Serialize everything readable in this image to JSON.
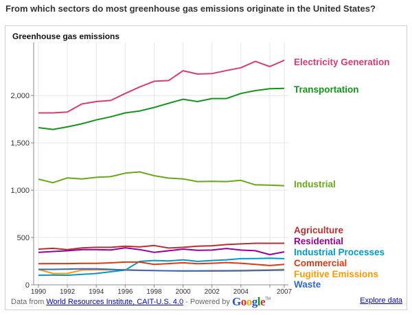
{
  "page": {
    "question": "From which sectors do most greenhouse gas emissions originate in the United States?"
  },
  "footer": {
    "prefix": "Data from ",
    "source_link": "World Resources Institute, CAIT-U.S. 4.0",
    "powered_by": " - Powered by ",
    "google": [
      "G",
      "o",
      "o",
      "g",
      "l",
      "e"
    ],
    "google_colors": [
      "#1a56d6",
      "#d62d20",
      "#f2a900",
      "#1a56d6",
      "#109618",
      "#d62d20"
    ],
    "tm": "TM",
    "explore_link": "Explore data"
  },
  "chart_data": {
    "type": "line",
    "title": "Greenhouse gas emissions",
    "xlabel": "",
    "ylabel": "",
    "x": [
      1990,
      1991,
      1992,
      1993,
      1994,
      1995,
      1996,
      1997,
      1998,
      1999,
      2000,
      2001,
      2002,
      2003,
      2004,
      2005,
      2006,
      2007
    ],
    "x_ticks": [
      1990,
      1992,
      1994,
      1996,
      1998,
      2000,
      2002,
      2004,
      2007
    ],
    "x_gridlines": [
      1990,
      1992,
      1994,
      1996,
      1998,
      2000,
      2002,
      2004,
      2006,
      2007
    ],
    "y_ticks": [
      0,
      500,
      1000,
      1500,
      2000
    ],
    "y_tick_labels": [
      "0",
      "500",
      "1,000",
      "1,500",
      "2,000"
    ],
    "ylim": [
      0,
      2560
    ],
    "xlim": [
      1990,
      2007
    ],
    "grid": true,
    "legend": "right, labels at line ends",
    "series": [
      {
        "name": "Electricity Generation",
        "color": "#dc3972",
        "values": [
          1817,
          1817,
          1825,
          1911,
          1936,
          1948,
          2022,
          2091,
          2151,
          2158,
          2262,
          2227,
          2232,
          2264,
          2294,
          2361,
          2306,
          2373
        ]
      },
      {
        "name": "Transportation",
        "color": "#109618",
        "values": [
          1661,
          1642,
          1669,
          1701,
          1743,
          1775,
          1817,
          1837,
          1874,
          1918,
          1961,
          1936,
          1968,
          1968,
          2022,
          2052,
          2072,
          2076
        ]
      },
      {
        "name": "Industrial",
        "color": "#66aa11",
        "values": [
          1116,
          1079,
          1130,
          1119,
          1136,
          1143,
          1180,
          1193,
          1153,
          1128,
          1119,
          1091,
          1093,
          1091,
          1104,
          1056,
          1054,
          1047
        ]
      },
      {
        "name": "Agriculture",
        "color": "#b82e2e",
        "values": [
          377,
          385,
          372,
          390,
          396,
          396,
          408,
          400,
          415,
          389,
          396,
          408,
          413,
          425,
          432,
          439,
          439,
          439
        ]
      },
      {
        "name": "Residential",
        "color": "#990099",
        "values": [
          343,
          352,
          360,
          372,
          372,
          368,
          391,
          372,
          343,
          360,
          377,
          365,
          367,
          384,
          367,
          360,
          319,
          348
        ]
      },
      {
        "name": "Industrial Processes",
        "color": "#0099c6",
        "values": [
          101,
          104,
          101,
          110,
          120,
          138,
          156,
          247,
          257,
          252,
          264,
          247,
          257,
          264,
          276,
          277,
          281,
          276
        ]
      },
      {
        "name": "Commercial",
        "color": "#dc3912",
        "values": [
          223,
          224,
          224,
          226,
          226,
          232,
          240,
          240,
          216,
          224,
          233,
          223,
          228,
          235,
          228,
          216,
          204,
          216
        ]
      },
      {
        "name": "Fugitive Emissions",
        "color": "#ff9900",
        "values": [
          163,
          120,
          120,
          156,
          158,
          158,
          160,
          155,
          150,
          149,
          149,
          149,
          150,
          150,
          152,
          156,
          158,
          163
        ]
      },
      {
        "name": "Waste",
        "color": "#3366cc",
        "values": [
          163,
          163,
          166,
          168,
          168,
          163,
          156,
          152,
          150,
          148,
          146,
          146,
          146,
          147,
          148,
          150,
          153,
          156
        ]
      }
    ]
  }
}
